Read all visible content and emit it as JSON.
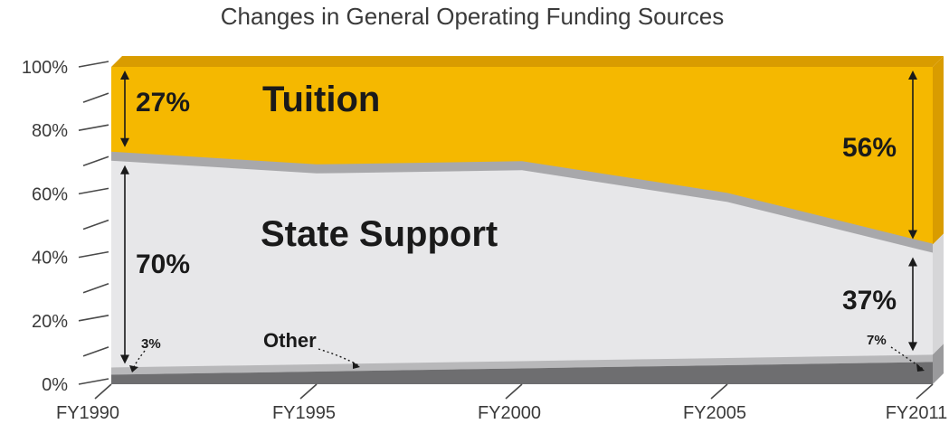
{
  "chart_data": {
    "type": "area",
    "title": "Changes in General Operating Funding Sources",
    "x": [
      "FY1990",
      "FY1995",
      "FY2000",
      "FY2005",
      "FY2011"
    ],
    "ylim": [
      0,
      100
    ],
    "y_ticks": [
      "0%",
      "20%",
      "40%",
      "60%",
      "80%",
      "100%"
    ],
    "series": [
      {
        "name": "Other",
        "values": [
          3,
          4,
          5,
          6,
          7
        ]
      },
      {
        "name": "State Support",
        "values": [
          70,
          65,
          65,
          54,
          37
        ]
      },
      {
        "name": "Tuition",
        "values": [
          27,
          31,
          30,
          40,
          56
        ]
      }
    ],
    "annotations": {
      "tuition_1990": "27%",
      "tuition_2011": "56%",
      "state_1990": "70%",
      "state_2011": "37%",
      "other_1990": "3%",
      "other_2011": "7%"
    },
    "colors": {
      "tuition": "#f5b800",
      "tuition_edge": "#d99c00",
      "state": "#e7e7e9",
      "state_ridge": "#a8a8ab",
      "other": "#6e6e70",
      "other_ridge": "#b8b8ba",
      "axis": "#4a4a4a"
    }
  }
}
